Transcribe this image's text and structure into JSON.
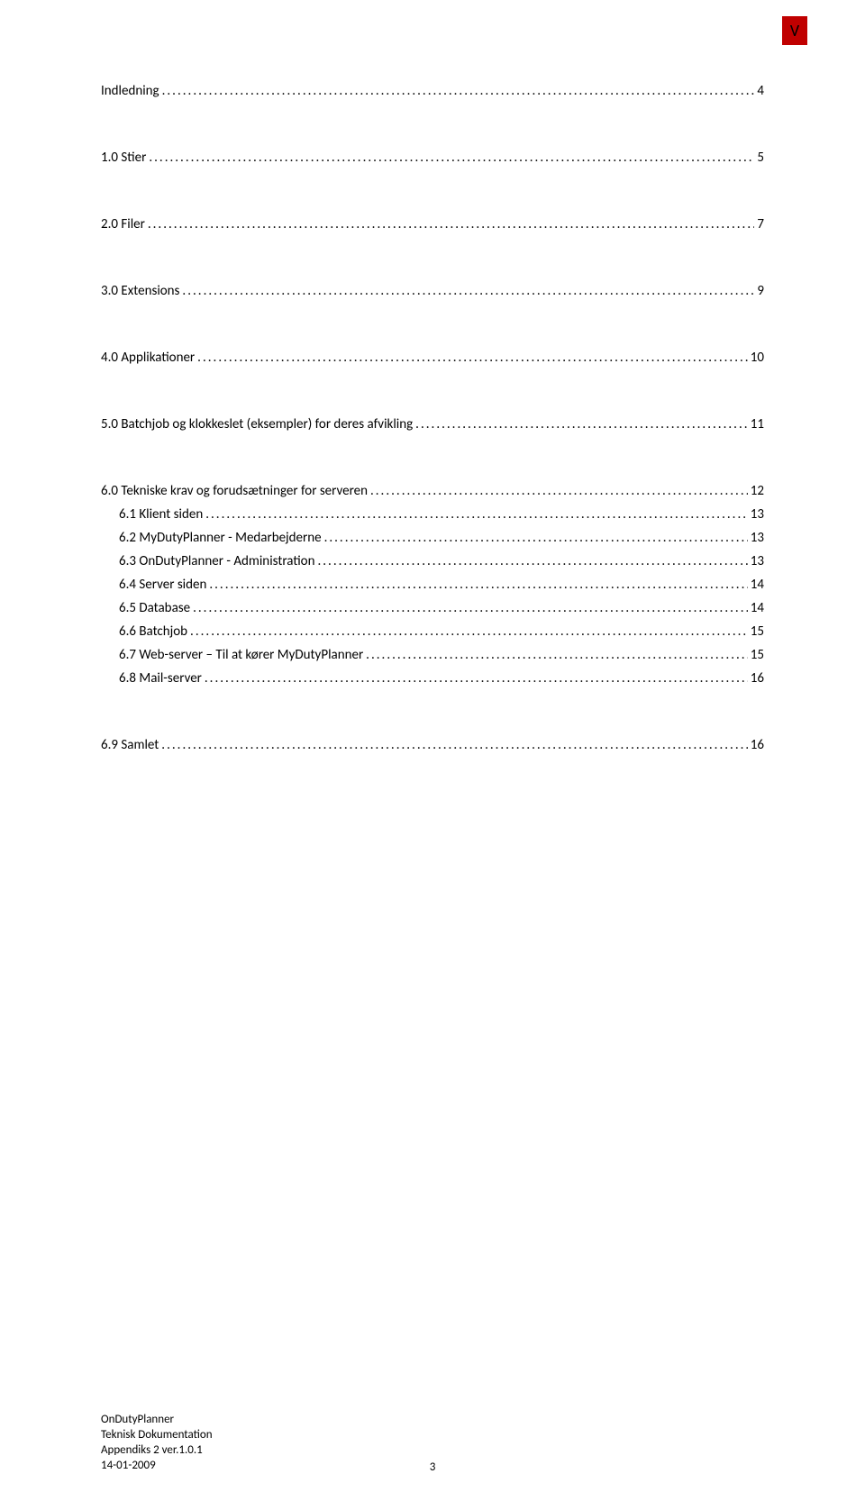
{
  "badge": {
    "label": "V",
    "background_color": "#c00000",
    "text_color": "#000000"
  },
  "toc": {
    "dots": "........................................................................................................................................................................................................................................................",
    "entries": [
      {
        "title": "Indledning",
        "page": "4",
        "level": 0
      },
      {
        "title": "1.0 Stier",
        "page": "5",
        "level": 0
      },
      {
        "title": "2.0 Filer",
        "page": "7",
        "level": 0
      },
      {
        "title": "3.0 Extensions",
        "page": "9",
        "level": 0
      },
      {
        "title": "4.0 Applikationer",
        "page": "10",
        "level": 0
      },
      {
        "title": "5.0 Batchjob og klokkeslet (eksempler) for deres afvikling",
        "page": "11",
        "level": 0
      },
      {
        "title": "6.0 Tekniske krav og forudsætninger for serveren",
        "page": "12",
        "level": 0
      },
      {
        "title": "6.1 Klient siden",
        "page": "13",
        "level": 1
      },
      {
        "title": "6.2 MyDutyPlanner - Medarbejderne",
        "page": "13",
        "level": 1
      },
      {
        "title": "6.3 OnDutyPlanner - Administration",
        "page": "13",
        "level": 1
      },
      {
        "title": "6.4 Server siden",
        "page": "14",
        "level": 1
      },
      {
        "title": "6.5 Database",
        "page": "14",
        "level": 1
      },
      {
        "title": "6.6 Batchjob",
        "page": "15",
        "level": 1
      },
      {
        "title": "6.7 Web-server – Til at kører MyDutyPlanner",
        "page": "15",
        "level": 1
      },
      {
        "title": "6.8 Mail-server",
        "page": "16",
        "level": 1
      },
      {
        "title": "6.9 Samlet",
        "page": "16",
        "level": 0
      }
    ]
  },
  "footer": {
    "line1": "OnDutyPlanner",
    "line2": "Teknisk Dokumentation",
    "line3": "Appendiks 2 ver.1.0.1",
    "line4": "14-01-2009"
  },
  "page_number": "3",
  "colors": {
    "background": "#ffffff",
    "text": "#000000"
  },
  "typography": {
    "body_fontsize": 15,
    "footer_fontsize": 13,
    "badge_fontsize": 18
  }
}
